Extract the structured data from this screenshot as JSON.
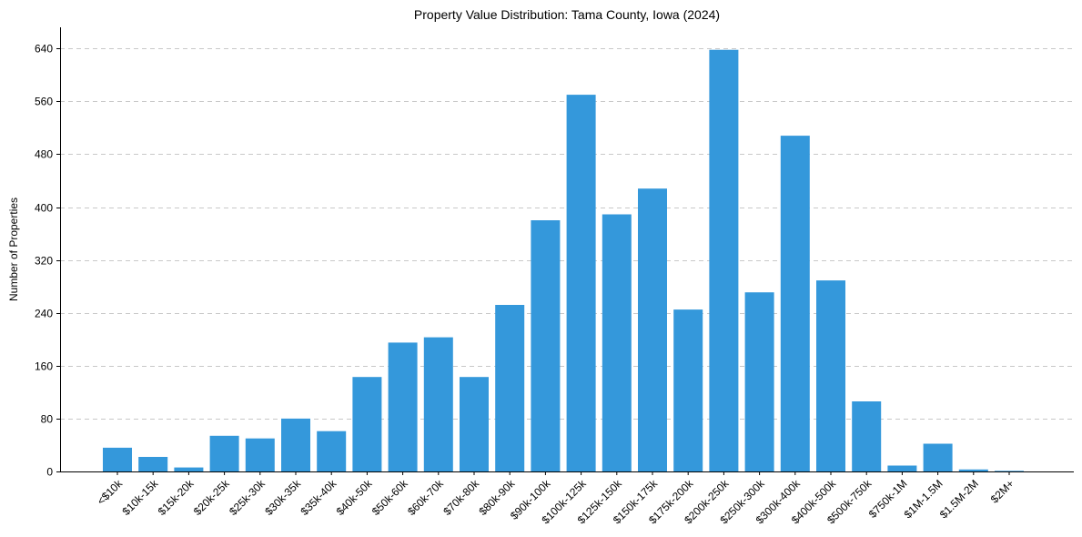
{
  "chart_data": {
    "type": "bar",
    "title": "Property Value Distribution: Tama County, Iowa (2024)",
    "xlabel": "",
    "ylabel": "Number of Properties",
    "ylim": [
      0,
      672
    ],
    "yticks": [
      0,
      80,
      160,
      240,
      320,
      400,
      480,
      560,
      640
    ],
    "grid": "y",
    "color": "#3498db",
    "categories": [
      "<$10k",
      "$10k-15k",
      "$15k-20k",
      "$20k-25k",
      "$25k-30k",
      "$30k-35k",
      "$35k-40k",
      "$40k-50k",
      "$50k-60k",
      "$60k-70k",
      "$70k-80k",
      "$80k-90k",
      "$90k-100k",
      "$100k-125k",
      "$125k-150k",
      "$150k-175k",
      "$175k-200k",
      "$200k-250k",
      "$250k-300k",
      "$300k-400k",
      "$400k-500k",
      "$500k-750k",
      "$750k-1M",
      "$1M-1.5M",
      "$1.5M-2M",
      "$2M+"
    ],
    "values": [
      36,
      22,
      6,
      54,
      50,
      80,
      61,
      143,
      195,
      203,
      143,
      252,
      380,
      570,
      389,
      428,
      245,
      638,
      271,
      508,
      289,
      106,
      9,
      42,
      3,
      1
    ]
  }
}
